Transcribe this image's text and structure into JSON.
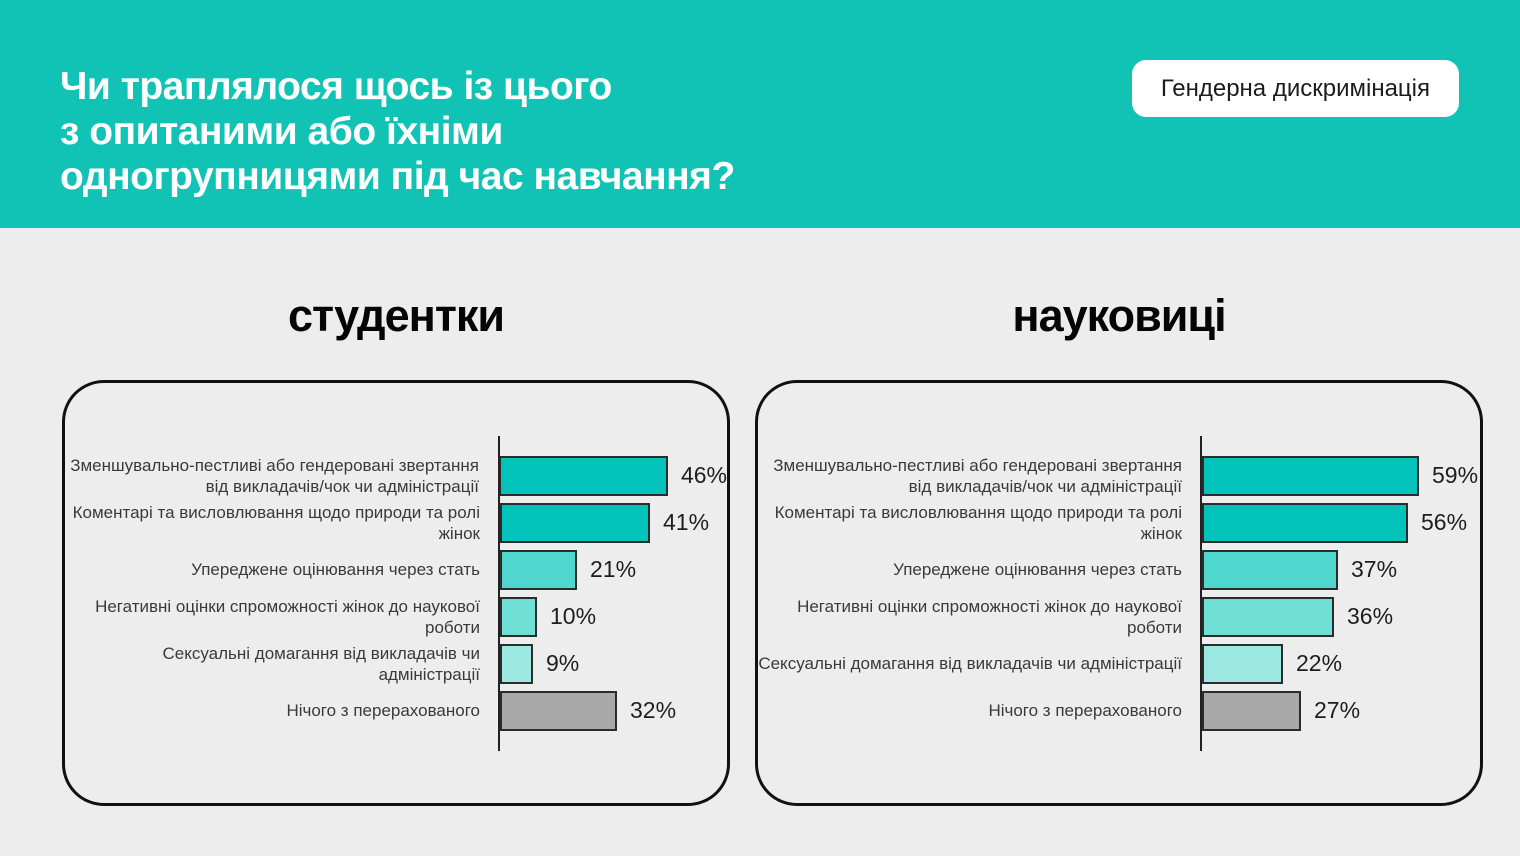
{
  "header": {
    "title_lines": [
      "Чи траплялося щось із цього",
      "з опитаними або їхніми",
      "одногрупницями під час навчання?"
    ],
    "badge": "Гендерна дискримінація",
    "bg_color": "#11C3B5"
  },
  "colors": {
    "page_background": "#EDEDED",
    "accent_teal_dark": "#02C3BA",
    "accent_teal_medium": "#50D7CD",
    "accent_teal_light": "#70E0D7",
    "accent_teal_lightest": "#9BE9E2",
    "neutral_gray_bar": "#A9A9A9",
    "panel_border": "#111111"
  },
  "chart_data": [
    {
      "type": "bar",
      "orientation": "horizontal",
      "title": "студентки",
      "unit": "%",
      "xlim": [
        0,
        100
      ],
      "grid": false,
      "legend": false,
      "categories": [
        "Зменшувально-пестливі або гендеровані звертання від викладачів/чок чи адміністрації",
        "Коментарі та висловлювання щодо природи та ролі жінок",
        "Упереджене оцінювання через стать",
        "Негативні оцінки спроможності жінок до наукової роботи",
        "Сексуальні домагання від викладачів чи адміністрації",
        "Нічого з перерахованого"
      ],
      "values": [
        46,
        41,
        21,
        10,
        9,
        32
      ],
      "value_labels": [
        "46%",
        "41%",
        "21%",
        "10%",
        "9%",
        "32%"
      ],
      "bar_colors": [
        "#02C3BA",
        "#02C3BA",
        "#50D7CD",
        "#70E0D7",
        "#9BE9E2",
        "#A9A9A9"
      ]
    },
    {
      "type": "bar",
      "orientation": "horizontal",
      "title": "науковиці",
      "unit": "%",
      "xlim": [
        0,
        100
      ],
      "grid": false,
      "legend": false,
      "categories": [
        "Зменшувально-пестливі або гендеровані звертання від викладачів/чок чи адміністрації",
        "Коментарі та висловлювання щодо природи та ролі жінок",
        "Упереджене оцінювання через стать",
        "Негативні оцінки спроможності жінок до наукової роботи",
        "Сексуальні домагання від викладачів чи адміністрації",
        "Нічого з перерахованого"
      ],
      "values": [
        59,
        56,
        37,
        36,
        22,
        27
      ],
      "value_labels": [
        "59%",
        "56%",
        "37%",
        "36%",
        "22%",
        "27%"
      ],
      "bar_colors": [
        "#02C3BA",
        "#02C3BA",
        "#50D7CD",
        "#70E0D7",
        "#9BE9E2",
        "#A9A9A9"
      ]
    }
  ]
}
